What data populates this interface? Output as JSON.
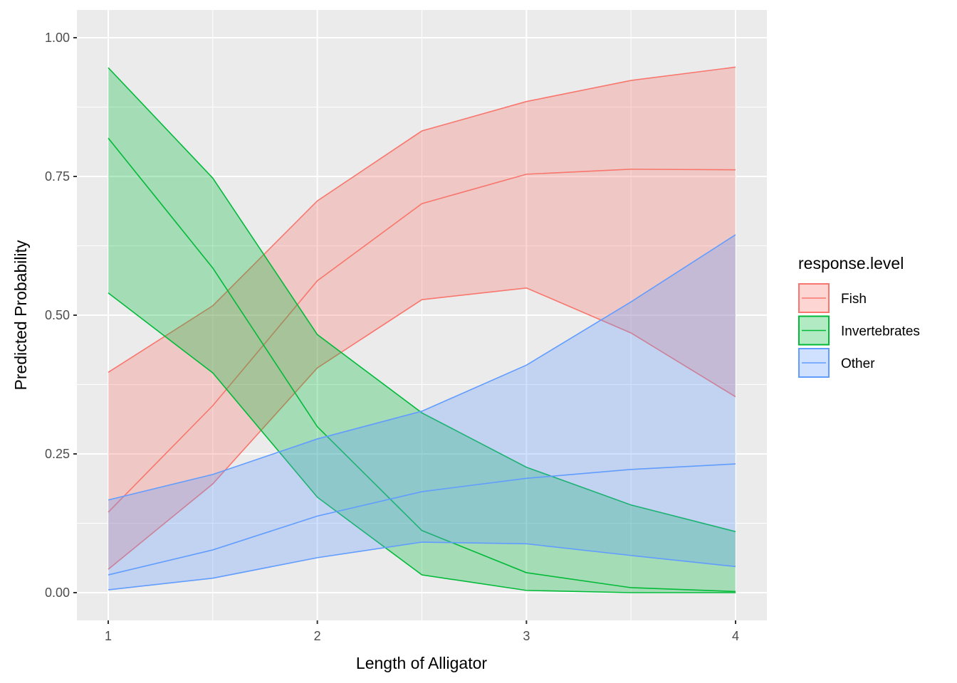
{
  "chart_data": {
    "type": "area",
    "title": "",
    "xlabel": "Length of Alligator",
    "ylabel": "Predicted Probability",
    "xlim": [
      0.85,
      4.15
    ],
    "ylim": [
      -0.05,
      1.05
    ],
    "x_ticks": [
      1,
      2,
      3,
      4
    ],
    "x_tick_labels": [
      "1",
      "2",
      "3",
      "4"
    ],
    "y_ticks": [
      0,
      0.25,
      0.5,
      0.75,
      1.0
    ],
    "y_tick_labels": [
      "0.00",
      "0.25",
      "0.50",
      "0.75",
      "1.00"
    ],
    "grid": true,
    "legend_position": "right",
    "legend_title": "response.level",
    "x": [
      1,
      1.5,
      2,
      2.5,
      3,
      3.5,
      4
    ],
    "series": [
      {
        "name": "Fish",
        "color": "#F8766D",
        "fill": "#F8766D",
        "estimate": [
          0.145,
          0.337,
          0.562,
          0.701,
          0.754,
          0.763,
          0.762
        ],
        "lower": [
          0.042,
          0.196,
          0.405,
          0.528,
          0.549,
          0.468,
          0.353
        ],
        "upper": [
          0.397,
          0.517,
          0.706,
          0.832,
          0.885,
          0.923,
          0.947
        ]
      },
      {
        "name": "Invertebrates",
        "color": "#00BA38",
        "fill": "#00BA38",
        "estimate": [
          0.819,
          0.585,
          0.299,
          0.112,
          0.036,
          0.009,
          0.002
        ],
        "lower": [
          0.54,
          0.396,
          0.172,
          0.032,
          0.004,
          0.0,
          0.0
        ],
        "upper": [
          0.946,
          0.747,
          0.465,
          0.324,
          0.226,
          0.158,
          0.11
        ]
      },
      {
        "name": "Other",
        "color": "#619CFF",
        "fill": "#619CFF",
        "estimate": [
          0.032,
          0.077,
          0.138,
          0.182,
          0.206,
          0.222,
          0.232
        ],
        "lower": [
          0.005,
          0.026,
          0.063,
          0.091,
          0.088,
          0.067,
          0.047
        ],
        "upper": [
          0.167,
          0.213,
          0.277,
          0.327,
          0.41,
          0.524,
          0.645
        ]
      }
    ]
  },
  "style": {
    "panel_bg": "#EBEBEB",
    "grid_major": "#FFFFFF",
    "fill_alpha": 0.3
  }
}
